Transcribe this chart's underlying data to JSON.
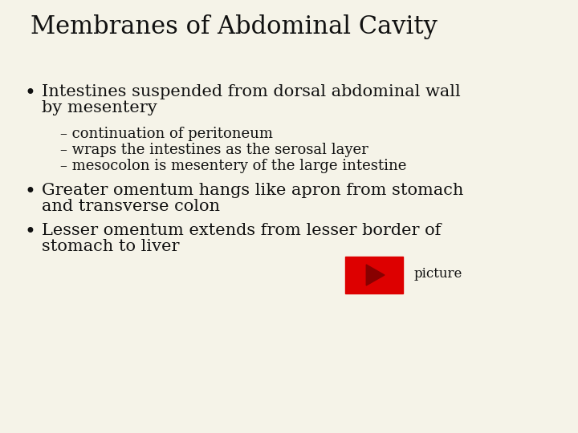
{
  "title": "Membranes of Abdominal Cavity",
  "background_color": "#f5f3e8",
  "title_fontsize": 22,
  "text_color": "#111111",
  "bullet1_line1": "Intestines suspended from dorsal abdominal wall",
  "bullet1_line2": "by mesentery",
  "sub1": "– continuation of peritoneum",
  "sub2": "– wraps the intestines as the serosal layer",
  "sub3": "– mesocolon is mesentery of the large intestine",
  "bullet2_line1": "Greater omentum hangs like apron from stomach",
  "bullet2_line2": "and transverse colon",
  "bullet3_line1": "Lesser omentum extends from lesser border of",
  "bullet3_line2": "stomach to liver",
  "picture_label": "picture",
  "play_button_color": "#dd0000",
  "play_arrow_color": "#880000",
  "body_fontsize": 15,
  "sub_fontsize": 13
}
